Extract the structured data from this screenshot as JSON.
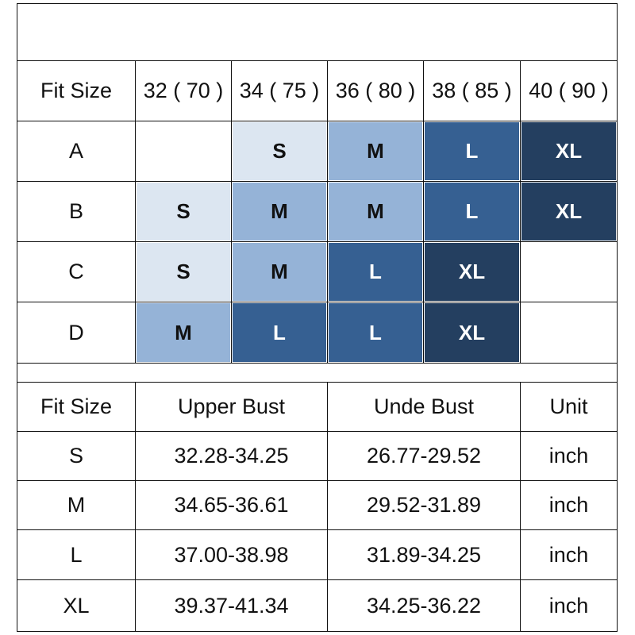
{
  "size_matrix": {
    "corner_label": "Fit Size",
    "band_sizes": [
      "32 ( 70 )",
      "34 ( 75 )",
      "36 ( 80 )",
      "38 ( 85 )",
      "40 ( 90 )"
    ],
    "rows": [
      {
        "cup": "A",
        "sizes": [
          "",
          "S",
          "M",
          "L",
          "XL"
        ]
      },
      {
        "cup": "B",
        "sizes": [
          "S",
          "M",
          "M",
          "L",
          "XL"
        ]
      },
      {
        "cup": "C",
        "sizes": [
          "S",
          "M",
          "L",
          "XL",
          ""
        ]
      },
      {
        "cup": "D",
        "sizes": [
          "M",
          "L",
          "L",
          "XL",
          ""
        ]
      }
    ],
    "size_colors": {
      "S": {
        "bg": "#dce6f1",
        "fg": "#111111"
      },
      "M": {
        "bg": "#95b3d7",
        "fg": "#111111"
      },
      "L": {
        "bg": "#366092",
        "fg": "#ffffff"
      },
      "XL": {
        "bg": "#243f60",
        "fg": "#ffffff"
      }
    }
  },
  "measurements": {
    "headers": [
      "Fit Size",
      "Upper Bust",
      "Unde Bust",
      "Unit"
    ],
    "rows": [
      [
        "S",
        "32.28-34.25",
        "26.77-29.52",
        "inch"
      ],
      [
        "M",
        "34.65-36.61",
        "29.52-31.89",
        "inch"
      ],
      [
        "L",
        "37.00-38.98",
        "31.89-34.25",
        "inch"
      ],
      [
        "XL",
        "39.37-41.34",
        "34.25-36.22",
        "inch"
      ]
    ]
  }
}
